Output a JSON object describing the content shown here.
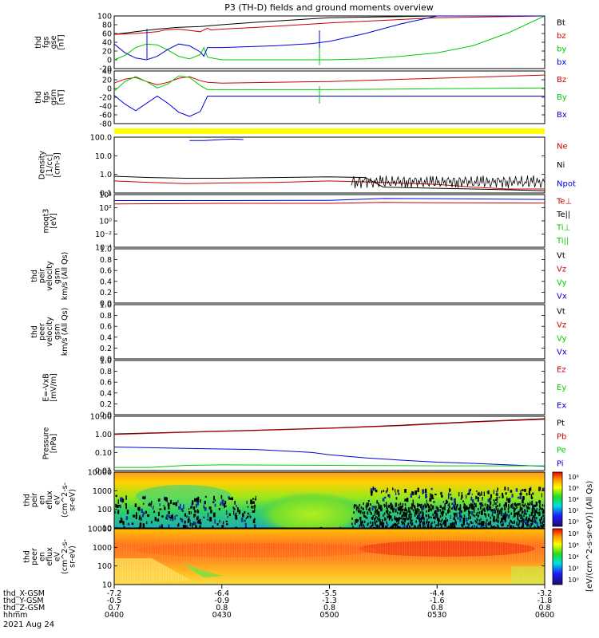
{
  "title": "P3 (TH-D) fields and ground moments overview",
  "date_label": "2021 Aug 24",
  "colors": {
    "black": "#000000",
    "red": "#cc0000",
    "green": "#00cc00",
    "blue": "#0000dd",
    "yellow": "#ffff00"
  },
  "chart_data": [
    {
      "id": "fgs-gse",
      "type": "line",
      "ylabel": [
        "thd",
        "fgs",
        "gse",
        "[nT]"
      ],
      "ylim": [
        -20,
        100
      ],
      "yticks": [
        "100",
        "80",
        "60",
        "40",
        "20",
        "0",
        "-20"
      ],
      "legend": [
        "Bt",
        "bz",
        "by",
        "bx"
      ],
      "series": [
        {
          "name": "Bt",
          "color": "black",
          "x": [
            0,
            6,
            12,
            18,
            24,
            30,
            40,
            60,
            90,
            120
          ],
          "y": [
            58,
            64,
            70,
            74,
            76,
            80,
            86,
            96,
            108,
            118
          ]
        },
        {
          "name": "bz",
          "color": "red",
          "x": [
            0,
            6,
            12,
            14,
            18,
            24,
            26,
            27,
            30,
            40,
            60,
            90,
            120
          ],
          "y": [
            58,
            60,
            64,
            68,
            70,
            64,
            72,
            68,
            70,
            74,
            84,
            96,
            108
          ]
        },
        {
          "name": "by",
          "color": "green",
          "x": [
            0,
            3,
            6,
            9,
            12,
            15,
            18,
            21,
            24,
            25,
            26,
            30,
            45,
            60,
            70,
            80,
            90,
            100,
            110,
            120
          ],
          "y": [
            0,
            10,
            28,
            36,
            34,
            22,
            8,
            2,
            12,
            28,
            6,
            0,
            0,
            0,
            2,
            8,
            16,
            32,
            62,
            100
          ]
        },
        {
          "name": "bx",
          "color": "blue",
          "x": [
            0,
            3,
            6,
            9,
            12,
            15,
            18,
            21,
            24,
            25,
            26,
            30,
            45,
            55,
            60,
            70,
            80,
            90,
            120
          ],
          "y": [
            36,
            16,
            4,
            0,
            8,
            24,
            36,
            32,
            18,
            8,
            28,
            28,
            32,
            37,
            42,
            60,
            82,
            104,
            110
          ]
        }
      ]
    },
    {
      "id": "fgs-gsm",
      "type": "line",
      "ylabel": [
        "thd",
        "fgs",
        "gsm",
        "[nT]"
      ],
      "ylim": [
        -90,
        40
      ],
      "yticks": [
        "40",
        "20",
        "0",
        "-20",
        "-40",
        "-60",
        "-80"
      ],
      "legend": [
        "Bz",
        "By",
        "Bx"
      ],
      "series": [
        {
          "name": "Bz",
          "color": "red",
          "x": [
            0,
            3,
            6,
            9,
            12,
            15,
            18,
            21,
            24,
            26,
            30,
            60,
            90,
            120
          ],
          "y": [
            10,
            20,
            24,
            14,
            6,
            12,
            22,
            26,
            16,
            12,
            10,
            14,
            22,
            30
          ]
        },
        {
          "name": "By",
          "color": "green",
          "x": [
            0,
            3,
            6,
            9,
            12,
            15,
            18,
            21,
            24,
            26,
            30,
            60,
            90,
            120
          ],
          "y": [
            -10,
            14,
            26,
            14,
            -2,
            8,
            28,
            24,
            4,
            -6,
            -6,
            -6,
            -4,
            -2
          ]
        },
        {
          "name": "Bx",
          "color": "blue",
          "x": [
            0,
            3,
            6,
            9,
            12,
            15,
            18,
            21,
            24,
            26,
            30,
            60,
            90,
            120
          ],
          "y": [
            -20,
            -42,
            -58,
            -40,
            -22,
            -40,
            -62,
            -72,
            -60,
            -22,
            -22,
            -22,
            -22,
            -22
          ]
        }
      ]
    },
    {
      "id": "density",
      "type": "line",
      "scale": "log",
      "ylabel": [
        "Density",
        "[1/cc]",
        "[cm-3]"
      ],
      "ylim": [
        0.05,
        200
      ],
      "yticks": [
        "100.0",
        "10.0",
        "1.0",
        "0.1"
      ],
      "legend": [
        "Ne",
        "Ni",
        "Npot"
      ],
      "series": [
        {
          "name": "Ne",
          "color": "red",
          "x": [
            0,
            10,
            20,
            30,
            45,
            60,
            75,
            90,
            100,
            110,
            120
          ],
          "y": [
            0.3,
            0.24,
            0.2,
            0.22,
            0.24,
            0.3,
            0.24,
            0.18,
            0.12,
            0.09,
            0.09
          ]
        },
        {
          "name": "Ni",
          "color": "black",
          "x": [
            0,
            10,
            20,
            30,
            45,
            60,
            70,
            75,
            90,
            100,
            110,
            120
          ],
          "y": [
            0.6,
            0.5,
            0.45,
            0.45,
            0.5,
            0.55,
            0.5,
            0.12,
            0.1,
            0.09,
            0.08,
            0.07
          ]
        },
        {
          "name": "Npot",
          "color": "blue",
          "x": [
            21,
            25,
            30,
            33,
            36
          ],
          "y": [
            120,
            120,
            140,
            150,
            140
          ]
        }
      ]
    },
    {
      "id": "temperature",
      "type": "line",
      "scale": "log",
      "ylabel": [
        "moqt3",
        "[eV]"
      ],
      "ylim": [
        1e-05,
        30000
      ],
      "yticks": [
        "10⁴",
        "10²",
        "10⁰",
        "10⁻²",
        "10⁻⁴"
      ],
      "legend": [
        "Te⊥",
        "Te||",
        "Ti⊥",
        "Ti||"
      ],
      "series": [
        {
          "name": "Ti",
          "color": "blue",
          "x": [
            0,
            30,
            60,
            75,
            90,
            120
          ],
          "y": [
            2500,
            2500,
            2800,
            6000,
            5500,
            4000
          ]
        },
        {
          "name": "Te",
          "color": "red",
          "x": [
            0,
            30,
            60,
            75,
            90,
            120
          ],
          "y": [
            600,
            800,
            800,
            1200,
            1000,
            900
          ]
        }
      ]
    },
    {
      "id": "peir-velocity",
      "type": "line",
      "ylabel": [
        "thd",
        "peir",
        "velocity",
        "gsm",
        "km/s (All Qs)"
      ],
      "ylim": [
        0,
        1
      ],
      "yticks": [
        "1.0",
        "0.8",
        "0.6",
        "0.4",
        "0.2",
        "0.0"
      ],
      "legend": [
        "Vt",
        "Vz",
        "Vy",
        "Vx"
      ],
      "series": []
    },
    {
      "id": "peer-velocity",
      "type": "line",
      "ylabel": [
        "thd",
        "peer",
        "velocity",
        "gsm",
        "km/s (All Qs)"
      ],
      "ylim": [
        0,
        1
      ],
      "yticks": [
        "1.0",
        "0.8",
        "0.6",
        "0.4",
        "0.2",
        "0.0"
      ],
      "legend": [
        "Vt",
        "Vz",
        "Vy",
        "Vx"
      ],
      "series": []
    },
    {
      "id": "efield",
      "type": "line",
      "ylabel": [
        "E=-VxB",
        "[mV/m]"
      ],
      "ylim": [
        0,
        1
      ],
      "yticks": [
        "1.0",
        "0.8",
        "0.6",
        "0.4",
        "0.2",
        "0.0"
      ],
      "legend": [
        "Ez",
        "Ey",
        "Ex"
      ],
      "series": []
    },
    {
      "id": "pressure",
      "type": "line",
      "scale": "log",
      "ylabel": [
        "Pressure",
        "[nPa]"
      ],
      "ylim": [
        0.007,
        20
      ],
      "yticks": [
        "10.00",
        "1.00",
        "0.10",
        "0.01"
      ],
      "legend": [
        "Pt",
        "Pb",
        "Pe",
        "Pi"
      ],
      "series": [
        {
          "name": "Pt",
          "color": "black",
          "x": [
            0,
            20,
            40,
            60,
            80,
            100,
            120
          ],
          "y": [
            1.5,
            2,
            2.6,
            3.6,
            5.4,
            9,
            14
          ]
        },
        {
          "name": "Pb",
          "color": "red",
          "x": [
            0,
            20,
            40,
            60,
            80,
            100,
            120
          ],
          "y": [
            1.4,
            1.9,
            2.5,
            3.4,
            5,
            8.5,
            13
          ]
        },
        {
          "name": "Pi",
          "color": "blue",
          "x": [
            0,
            10,
            20,
            40,
            55,
            60,
            70,
            80,
            90,
            100,
            110,
            120
          ],
          "y": [
            0.22,
            0.2,
            0.18,
            0.15,
            0.1,
            0.07,
            0.045,
            0.032,
            0.024,
            0.02,
            0.016,
            0.013
          ]
        },
        {
          "name": "Pe",
          "color": "green",
          "x": [
            0,
            10,
            20,
            30,
            60,
            90,
            120
          ],
          "y": [
            0.011,
            0.011,
            0.015,
            0.016,
            0.015,
            0.014,
            0.014
          ]
        }
      ]
    },
    {
      "id": "peir-eflux",
      "type": "heatmap",
      "scale": "log",
      "ylabel": [
        "thd",
        "peir",
        "en",
        "eflux",
        "eV",
        "(cm^2-s-",
        "sr-eV)"
      ],
      "ylim": [
        5,
        20000
      ],
      "yticks": [
        "10000",
        "1000",
        "100",
        "10"
      ]
    },
    {
      "id": "peer-eflux",
      "type": "heatmap",
      "scale": "log",
      "ylabel": [
        "thd",
        "peer",
        "en",
        "eflux",
        "eV",
        "(cm^2-s-",
        "sr-eV)"
      ],
      "ylim": [
        5,
        20000
      ],
      "yticks": [
        "10000",
        "1000",
        "100",
        "10"
      ]
    }
  ],
  "colorbar": {
    "label": "[eV/(cm^2-s-sr-eV)] (All Qs)",
    "ticks": [
      "10⁸",
      "10⁶",
      "10⁴",
      "10²",
      "10⁰"
    ]
  },
  "x_axis": {
    "ticks": [
      0,
      30,
      60,
      90,
      120
    ],
    "rows": [
      {
        "label": "thd_X-GSM",
        "values": [
          "-7.2",
          "-6.4",
          "-5.5",
          "-4.4",
          "-3.2"
        ]
      },
      {
        "label": "thd_Y-GSM",
        "values": [
          "-0.5",
          "-0.9",
          "-1.3",
          "-1.6",
          "-1.8"
        ]
      },
      {
        "label": "thd_Z-GSM",
        "values": [
          "0.7",
          "0.8",
          "0.8",
          "0.8",
          "0.8"
        ]
      },
      {
        "label": "hhmm",
        "values": [
          "0400",
          "0430",
          "0500",
          "0530",
          "0600"
        ]
      }
    ]
  }
}
